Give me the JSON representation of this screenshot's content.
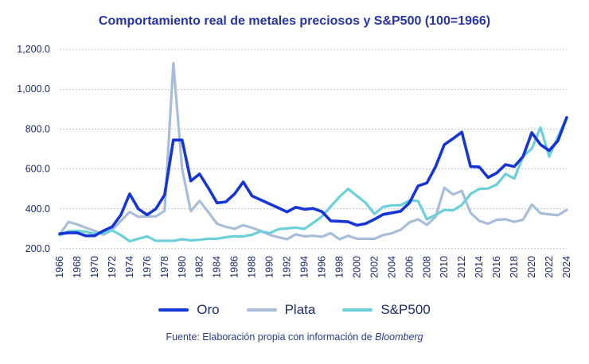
{
  "chart_data": {
    "type": "line",
    "title": "Comportamiento real de metales preciosos y S&P500 (100=1966)",
    "xlabel": "",
    "ylabel": "",
    "ylim": [
      200,
      1200
    ],
    "y_ticks": [
      "200.0",
      "400.0",
      "600.0",
      "800.0",
      "1,000.0",
      "1,200.0"
    ],
    "y_tick_values": [
      200,
      400,
      600,
      800,
      1000,
      1200
    ],
    "x_ticks": [
      "1966",
      "1968",
      "1970",
      "1972",
      "1974",
      "1976",
      "1978",
      "1980",
      "1982",
      "1984",
      "1986",
      "1988",
      "1990",
      "1992",
      "1994",
      "1996",
      "1998",
      "2000",
      "2002",
      "2004",
      "2006",
      "2008",
      "2010",
      "2012",
      "2014",
      "2016",
      "2018",
      "2020",
      "2022",
      "2024"
    ],
    "x": [
      1966,
      1967,
      1968,
      1969,
      1970,
      1971,
      1972,
      1973,
      1974,
      1975,
      1976,
      1977,
      1978,
      1979,
      1980,
      1981,
      1982,
      1983,
      1984,
      1985,
      1986,
      1987,
      1988,
      1989,
      1990,
      1991,
      1992,
      1993,
      1994,
      1995,
      1996,
      1997,
      1998,
      1999,
      2000,
      2001,
      2002,
      2003,
      2004,
      2005,
      2006,
      2007,
      2008,
      2009,
      2010,
      2011,
      2012,
      2013,
      2014,
      2015,
      2016,
      2017,
      2018,
      2019,
      2020,
      2021,
      2022,
      2023,
      2024
    ],
    "series": [
      {
        "name": "Oro",
        "color": "#1535d6",
        "values": [
          275,
          280,
          280,
          265,
          265,
          290,
          310,
          370,
          475,
          400,
          370,
          400,
          470,
          745,
          745,
          540,
          575,
          505,
          430,
          435,
          475,
          535,
          465,
          445,
          425,
          405,
          385,
          408,
          398,
          402,
          386,
          340,
          338,
          335,
          318,
          326,
          348,
          372,
          380,
          388,
          430,
          515,
          530,
          612,
          722,
          752,
          785,
          612,
          610,
          557,
          580,
          622,
          612,
          662,
          782,
          722,
          692,
          742,
          858
        ]
      },
      {
        "name": "Plata",
        "color": "#a8bdd8",
        "values": [
          270,
          335,
          322,
          305,
          290,
          270,
          295,
          340,
          385,
          360,
          362,
          362,
          390,
          1130,
          600,
          388,
          440,
          384,
          325,
          310,
          300,
          318,
          305,
          290,
          270,
          258,
          248,
          272,
          262,
          265,
          260,
          278,
          248,
          265,
          250,
          250,
          250,
          268,
          278,
          295,
          332,
          348,
          320,
          360,
          505,
          472,
          490,
          380,
          340,
          325,
          345,
          348,
          335,
          345,
          422,
          378,
          373,
          368,
          395
        ]
      },
      {
        "name": "S&P500",
        "color": "#6bd0d8",
        "values": [
          268,
          288,
          290,
          285,
          275,
          280,
          292,
          268,
          238,
          250,
          262,
          240,
          240,
          240,
          248,
          242,
          245,
          250,
          250,
          258,
          262,
          262,
          270,
          288,
          278,
          298,
          302,
          306,
          300,
          330,
          362,
          412,
          460,
          500,
          465,
          430,
          375,
          410,
          418,
          418,
          442,
          440,
          348,
          370,
          395,
          392,
          420,
          475,
          500,
          502,
          522,
          575,
          552,
          662,
          702,
          808,
          662,
          762,
          858
        ]
      }
    ]
  },
  "legend": {
    "items": [
      "Oro",
      "Plata",
      "S&P500"
    ]
  },
  "source": {
    "prefix": "Fuente: Elaboración propia con información de ",
    "name": "Bloomberg"
  }
}
